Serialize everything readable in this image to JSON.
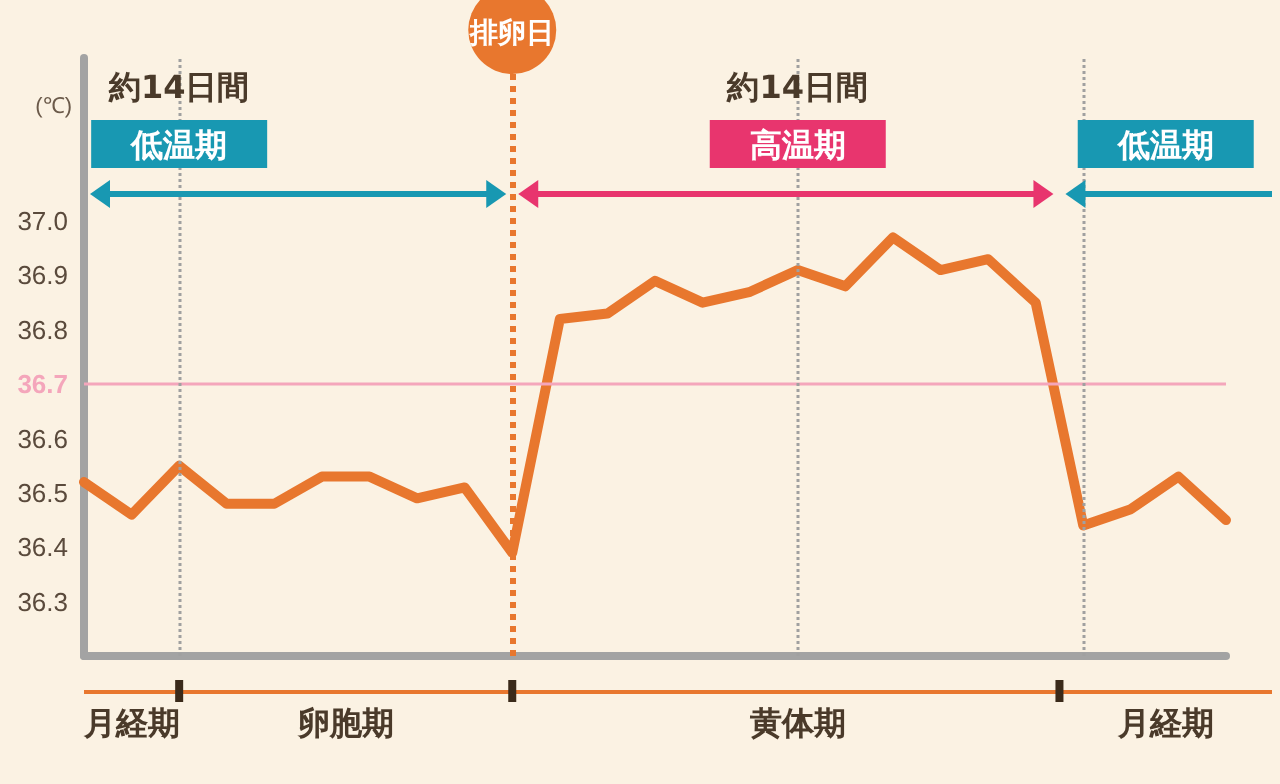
{
  "chart_data": {
    "type": "line",
    "ylabel": "(℃)",
    "categories": [
      null,
      null,
      null,
      null,
      null,
      null,
      null,
      null,
      null,
      null,
      null,
      null,
      null,
      null,
      null,
      null,
      null,
      null,
      null,
      null,
      null,
      null,
      null,
      null,
      null
    ],
    "values": [
      36.52,
      36.46,
      36.55,
      36.48,
      36.48,
      36.53,
      36.53,
      36.49,
      36.51,
      36.39,
      36.82,
      36.83,
      36.89,
      36.85,
      36.87,
      36.91,
      36.88,
      36.97,
      36.91,
      36.93,
      36.85,
      36.44,
      36.47,
      36.53,
      36.45
    ],
    "color": "#e8772e",
    "ylim": [
      36.2,
      37.3
    ],
    "yticks": [
      36.3,
      36.4,
      36.5,
      36.6,
      36.7,
      36.8,
      36.9,
      {
        "value": 37,
        "label": "37.0"
      }
    ],
    "tick_labels": "y",
    "grid": "x",
    "marker": "none",
    "line_style": "solid",
    "ref_lines": [
      {
        "axis": "y",
        "value": 36.7,
        "color": "#f4a6bb",
        "line_style": "solid"
      }
    ],
    "annotations": [
      "約14日間",
      "低温期",
      "約14日間",
      "高温期",
      "低温期",
      "月経期",
      "卵胞期",
      "黄体期",
      "月経期",
      "排卵日"
    ]
  }
}
